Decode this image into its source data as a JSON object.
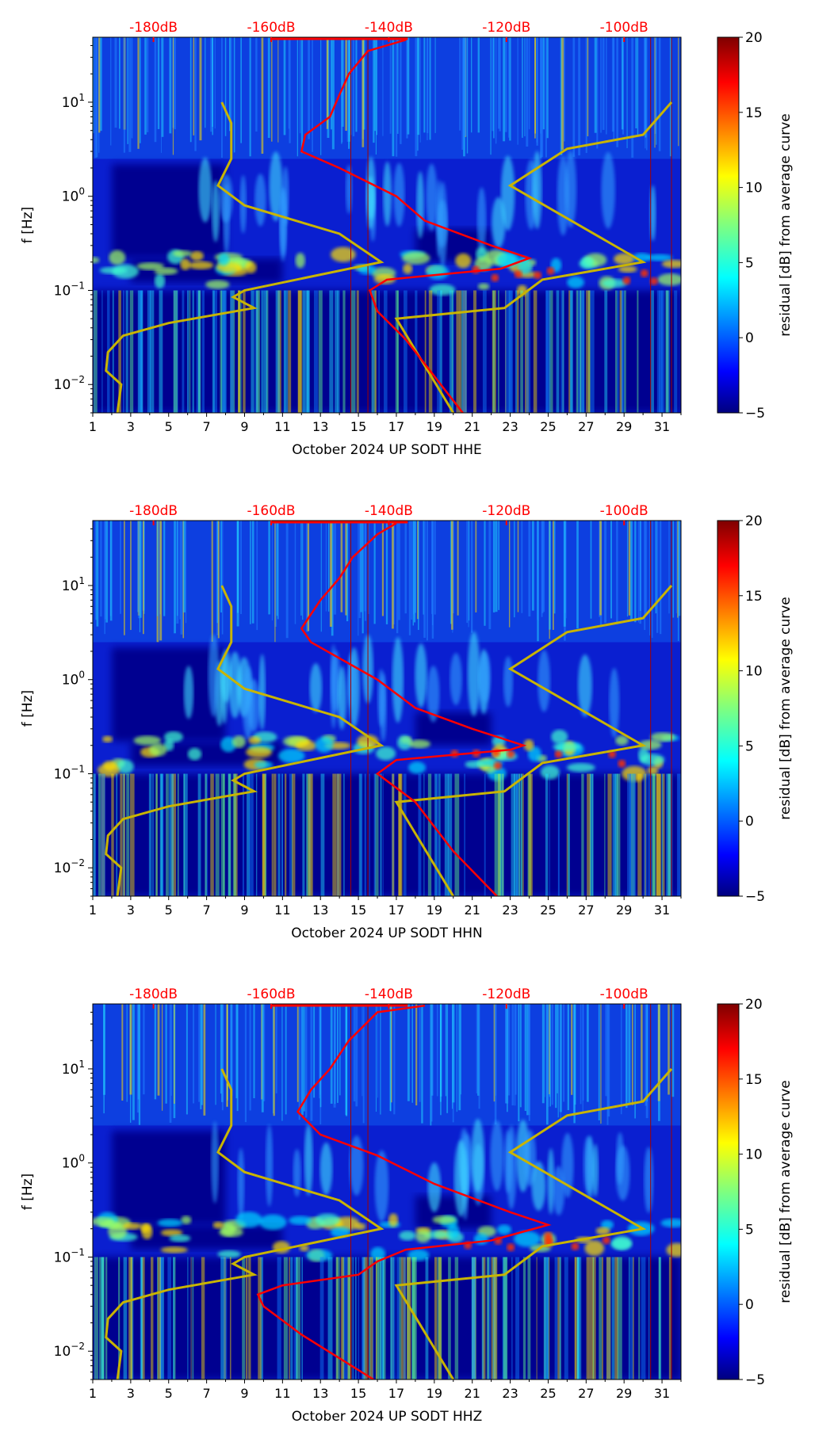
{
  "chart_data": [
    {
      "type": "heatmap",
      "xlabel": "October 2024 UP SODT  HHE",
      "ylabel": "f [Hz]",
      "colorbar_label": "residual [dB] from average curve",
      "colorbar_ticks": [
        "20",
        "15",
        "10",
        "5",
        "0",
        "−5"
      ],
      "colorbar_range": [
        -5,
        20
      ],
      "xlim": [
        1,
        32
      ],
      "ylim": [
        0.005,
        49
      ],
      "yscale": "log",
      "x_ticks": [
        "1",
        "3",
        "5",
        "7",
        "9",
        "11",
        "13",
        "15",
        "17",
        "19",
        "21",
        "23",
        "25",
        "27",
        "29",
        "31"
      ],
      "y_ticks": [
        {
          "label": "10",
          "exp": "1",
          "value": 10
        },
        {
          "label": "10",
          "exp": "0",
          "value": 1
        },
        {
          "label": "10",
          "exp": "−1",
          "value": 0.1
        },
        {
          "label": "10",
          "exp": "−2",
          "value": 0.01
        }
      ],
      "top_labels": [
        {
          "text": "-180dB",
          "day": 4.2
        },
        {
          "text": "-160dB",
          "day": 10.4
        },
        {
          "text": "-140dB",
          "day": 16.6
        },
        {
          "text": "-120dB",
          "day": 22.8
        },
        {
          "text": "-100dB",
          "day": 29.0
        }
      ],
      "red_curve": [
        [
          20.5,
          0.005
        ],
        [
          17.5,
          0.03
        ],
        [
          16,
          0.06
        ],
        [
          15.6,
          0.1
        ],
        [
          16.5,
          0.13
        ],
        [
          22.5,
          0.17
        ],
        [
          24,
          0.22
        ],
        [
          22,
          0.3
        ],
        [
          18.5,
          0.55
        ],
        [
          17,
          1
        ],
        [
          14,
          2
        ],
        [
          12,
          3
        ],
        [
          12.2,
          4.5
        ],
        [
          13.5,
          7
        ],
        [
          14,
          12
        ],
        [
          14.5,
          20
        ],
        [
          15.5,
          35
        ],
        [
          17.5,
          46
        ]
      ],
      "yellow_curves": [
        [
          [
            2.3,
            0.005
          ],
          [
            2.5,
            0.01
          ],
          [
            1.7,
            0.014
          ],
          [
            1.8,
            0.022
          ],
          [
            2.6,
            0.033
          ],
          [
            5,
            0.045
          ],
          [
            9.5,
            0.065
          ],
          [
            8.4,
            0.085
          ],
          [
            9,
            0.1
          ],
          [
            16.2,
            0.2
          ],
          [
            14,
            0.4
          ],
          [
            9,
            0.8
          ],
          [
            7.6,
            1.3
          ],
          [
            8.3,
            2.5
          ],
          [
            8.3,
            6
          ],
          [
            7.8,
            10
          ]
        ],
        [
          [
            20,
            0.005
          ],
          [
            17,
            0.05
          ],
          [
            22.7,
            0.065
          ],
          [
            24.7,
            0.13
          ],
          [
            30,
            0.2
          ],
          [
            23,
            1.3
          ],
          [
            26,
            3.2
          ],
          [
            30,
            4.5
          ],
          [
            31.5,
            10
          ]
        ]
      ]
    },
    {
      "type": "heatmap",
      "xlabel": "October 2024 UP SODT  HHN",
      "ylabel": "f [Hz]",
      "colorbar_label": "residual [dB] from average curve",
      "colorbar_ticks": [
        "20",
        "15",
        "10",
        "5",
        "0",
        "−5"
      ],
      "colorbar_range": [
        -5,
        20
      ],
      "xlim": [
        1,
        32
      ],
      "ylim": [
        0.005,
        49
      ],
      "yscale": "log",
      "x_ticks": [
        "1",
        "3",
        "5",
        "7",
        "9",
        "11",
        "13",
        "15",
        "17",
        "19",
        "21",
        "23",
        "25",
        "27",
        "29",
        "31"
      ],
      "y_ticks": [
        {
          "label": "10",
          "exp": "1",
          "value": 10
        },
        {
          "label": "10",
          "exp": "0",
          "value": 1
        },
        {
          "label": "10",
          "exp": "−1",
          "value": 0.1
        },
        {
          "label": "10",
          "exp": "−2",
          "value": 0.01
        }
      ],
      "top_labels": [
        {
          "text": "-180dB",
          "day": 4.2
        },
        {
          "text": "-160dB",
          "day": 10.4
        },
        {
          "text": "-140dB",
          "day": 16.6
        },
        {
          "text": "-120dB",
          "day": 22.8
        },
        {
          "text": "-100dB",
          "day": 29.0
        }
      ],
      "red_curve": [
        [
          22.3,
          0.005
        ],
        [
          20,
          0.015
        ],
        [
          18,
          0.05
        ],
        [
          16,
          0.1
        ],
        [
          17,
          0.14
        ],
        [
          23,
          0.18
        ],
        [
          23.7,
          0.2
        ],
        [
          21,
          0.3
        ],
        [
          18,
          0.5
        ],
        [
          16,
          1
        ],
        [
          12.5,
          2.5
        ],
        [
          12,
          3.5
        ],
        [
          13,
          7
        ],
        [
          14,
          12
        ],
        [
          14.7,
          20
        ],
        [
          16,
          35
        ],
        [
          17,
          46
        ]
      ],
      "yellow_curves": [
        [
          [
            2.3,
            0.005
          ],
          [
            2.5,
            0.01
          ],
          [
            1.7,
            0.014
          ],
          [
            1.8,
            0.022
          ],
          [
            2.6,
            0.033
          ],
          [
            5,
            0.045
          ],
          [
            9.5,
            0.065
          ],
          [
            8.4,
            0.085
          ],
          [
            9,
            0.1
          ],
          [
            16.2,
            0.2
          ],
          [
            14,
            0.4
          ],
          [
            9,
            0.8
          ],
          [
            7.6,
            1.3
          ],
          [
            8.3,
            2.5
          ],
          [
            8.3,
            6
          ],
          [
            7.8,
            10
          ]
        ],
        [
          [
            20,
            0.005
          ],
          [
            17,
            0.05
          ],
          [
            22.7,
            0.065
          ],
          [
            24.7,
            0.13
          ],
          [
            30,
            0.2
          ],
          [
            23,
            1.3
          ],
          [
            26,
            3.2
          ],
          [
            30,
            4.5
          ],
          [
            31.5,
            10
          ]
        ]
      ]
    },
    {
      "type": "heatmap",
      "xlabel": "October 2024 UP SODT  HHZ",
      "ylabel": "f [Hz]",
      "colorbar_label": "residual [dB] from average curve",
      "colorbar_ticks": [
        "20",
        "15",
        "10",
        "5",
        "0",
        "−5"
      ],
      "colorbar_range": [
        -5,
        20
      ],
      "xlim": [
        1,
        32
      ],
      "ylim": [
        0.005,
        49
      ],
      "yscale": "log",
      "x_ticks": [
        "1",
        "3",
        "5",
        "7",
        "9",
        "11",
        "13",
        "15",
        "17",
        "19",
        "21",
        "23",
        "25",
        "27",
        "29",
        "31"
      ],
      "y_ticks": [
        {
          "label": "10",
          "exp": "1",
          "value": 10
        },
        {
          "label": "10",
          "exp": "0",
          "value": 1
        },
        {
          "label": "10",
          "exp": "−1",
          "value": 0.1
        },
        {
          "label": "10",
          "exp": "−2",
          "value": 0.01
        }
      ],
      "top_labels": [
        {
          "text": "-180dB",
          "day": 4.2
        },
        {
          "text": "-160dB",
          "day": 10.4
        },
        {
          "text": "-140dB",
          "day": 16.6
        },
        {
          "text": "-120dB",
          "day": 22.8
        },
        {
          "text": "-100dB",
          "day": 29.0
        }
      ],
      "red_curve": [
        [
          15.8,
          0.005
        ],
        [
          12,
          0.015
        ],
        [
          10,
          0.03
        ],
        [
          9.7,
          0.04
        ],
        [
          11,
          0.05
        ],
        [
          15,
          0.065
        ],
        [
          16,
          0.09
        ],
        [
          17.5,
          0.12
        ],
        [
          22,
          0.15
        ],
        [
          25,
          0.22
        ],
        [
          23,
          0.3
        ],
        [
          19,
          0.6
        ],
        [
          16,
          1.2
        ],
        [
          13,
          2
        ],
        [
          11.8,
          3.5
        ],
        [
          12.5,
          6
        ],
        [
          13.5,
          10
        ],
        [
          14.5,
          20
        ],
        [
          16,
          40
        ],
        [
          18.5,
          47
        ]
      ],
      "yellow_curves": [
        [
          [
            2.3,
            0.005
          ],
          [
            2.5,
            0.01
          ],
          [
            1.7,
            0.014
          ],
          [
            1.8,
            0.022
          ],
          [
            2.6,
            0.033
          ],
          [
            5,
            0.045
          ],
          [
            9.5,
            0.065
          ],
          [
            8.4,
            0.085
          ],
          [
            9,
            0.1
          ],
          [
            16.2,
            0.2
          ],
          [
            14,
            0.4
          ],
          [
            9,
            0.8
          ],
          [
            7.6,
            1.3
          ],
          [
            8.3,
            2.5
          ],
          [
            8.3,
            6
          ],
          [
            7.8,
            10
          ]
        ],
        [
          [
            20,
            0.005
          ],
          [
            17,
            0.05
          ],
          [
            22.7,
            0.065
          ],
          [
            24.7,
            0.13
          ],
          [
            30,
            0.2
          ],
          [
            23,
            1.3
          ],
          [
            26,
            3.2
          ],
          [
            30,
            4.5
          ],
          [
            31.5,
            10
          ]
        ]
      ]
    }
  ],
  "colors": {
    "red_curve": "#ff0000",
    "yellow_curve": "#c8b400",
    "top_label": "#ff0000"
  }
}
